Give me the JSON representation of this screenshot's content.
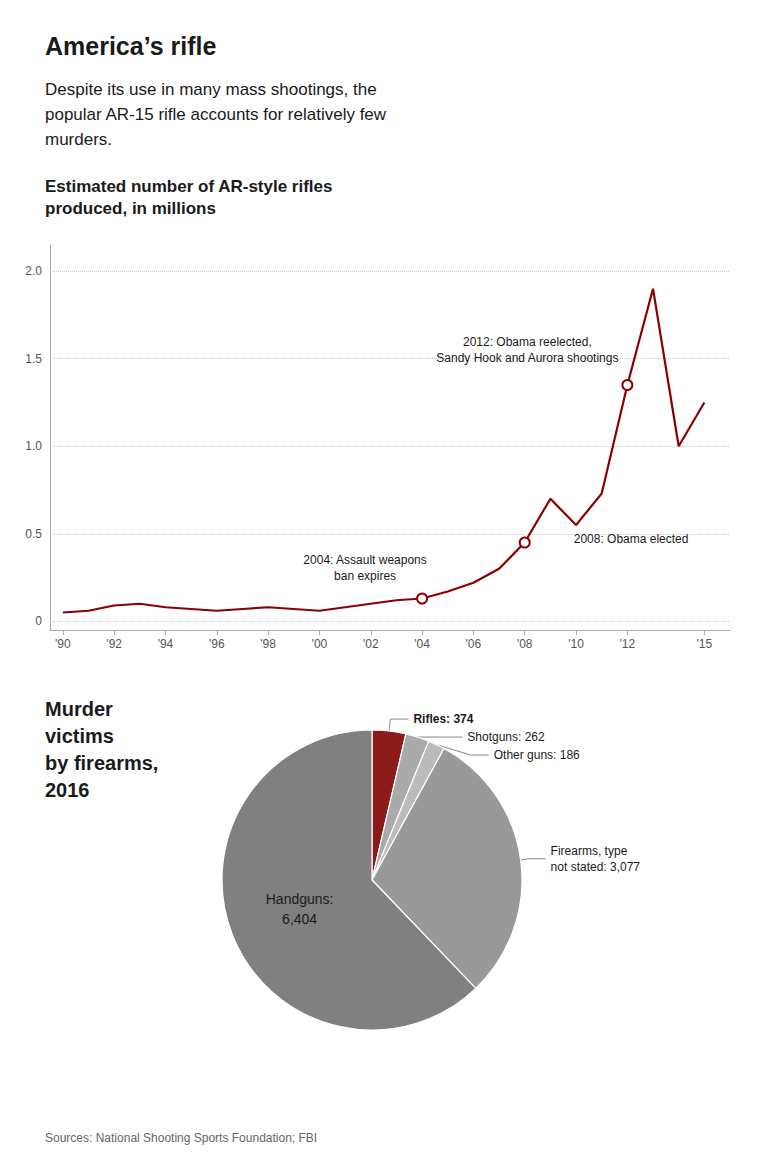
{
  "title": "America’s rifle",
  "subtitle": "Despite its use in many mass shootings, the\npopular AR-15 rifle accounts for relatively few\nmurders.",
  "source": "Sources: National Shooting Sports Foundation; FBI",
  "chart_data": [
    {
      "type": "line",
      "title": "Estimated number of AR-style rifles\nproduced, in millions",
      "x": [
        1990,
        1991,
        1992,
        1993,
        1994,
        1995,
        1996,
        1997,
        1998,
        1999,
        2000,
        2001,
        2002,
        2003,
        2004,
        2005,
        2006,
        2007,
        2008,
        2009,
        2010,
        2011,
        2012,
        2013,
        2014,
        2015
      ],
      "values": [
        0.05,
        0.06,
        0.09,
        0.1,
        0.08,
        0.07,
        0.06,
        0.07,
        0.08,
        0.07,
        0.06,
        0.08,
        0.1,
        0.12,
        0.13,
        0.17,
        0.22,
        0.3,
        0.45,
        0.7,
        0.55,
        0.73,
        1.35,
        1.9,
        1.0,
        1.25
      ],
      "color": "#8B0000",
      "xlim": [
        1989.5,
        2016
      ],
      "xticks": [
        {
          "value": 1990,
          "label": "'90"
        },
        {
          "value": 1992,
          "label": "'92"
        },
        {
          "value": 1994,
          "label": "'94"
        },
        {
          "value": 1996,
          "label": "'96"
        },
        {
          "value": 1998,
          "label": "'98"
        },
        {
          "value": 2000,
          "label": "'00"
        },
        {
          "value": 2002,
          "label": "'02"
        },
        {
          "value": 2004,
          "label": "'04"
        },
        {
          "value": 2006,
          "label": "'06"
        },
        {
          "value": 2008,
          "label": "'08"
        },
        {
          "value": 2010,
          "label": "'10"
        },
        {
          "value": 2012,
          "label": "'12"
        },
        {
          "value": 2015,
          "label": "'15"
        }
      ],
      "ylim": [
        -0.05,
        2.15
      ],
      "yticks": [
        0,
        0.5,
        {
          "value": 1,
          "label": "1.0"
        },
        1.5,
        {
          "value": 2,
          "label": "2.0"
        }
      ],
      "grid": true,
      "annotations": [
        {
          "x": 2004,
          "y": 0.13,
          "text": "2004: Assault weapons\nban expires"
        },
        {
          "x": 2008,
          "y": 0.45,
          "text": "2008: Obama elected"
        },
        {
          "x": 2012,
          "y": 1.35,
          "text": "2012: Obama reelected,\nSandy Hook and Aurora shootings"
        }
      ]
    },
    {
      "type": "pie",
      "title": "Murder\nvictims\nby firearms,\n2016",
      "categories": [
        "Rifles",
        "Shotguns",
        "Other guns",
        "Firearms, type not stated",
        "Handguns"
      ],
      "values": [
        374,
        262,
        186,
        3077,
        6404
      ],
      "value_labels": [
        "Rifles: 374",
        "Shotguns: 262",
        "Other guns: 186",
        "Firearms, type\nnot stated: 3,077",
        "Handguns:\n6,404"
      ],
      "data_labels": true,
      "colors": [
        "#8B1A1A",
        "#aaaaaa",
        "#bbbbbb",
        "#999999",
        "#808080"
      ]
    }
  ]
}
